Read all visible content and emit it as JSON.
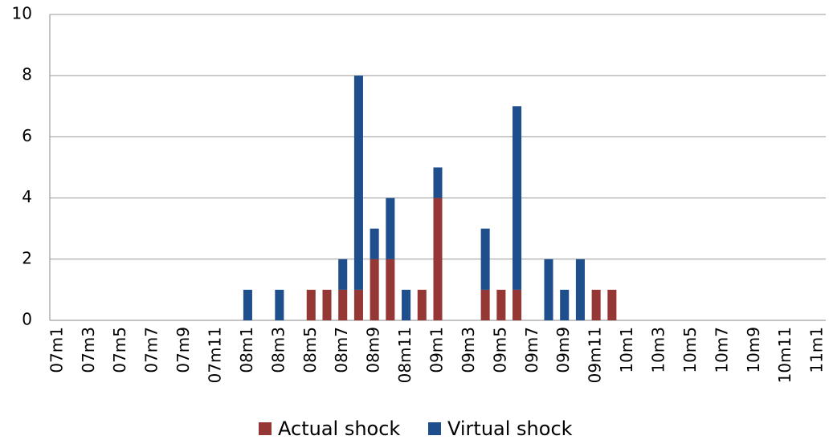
{
  "chart_data": {
    "type": "bar",
    "stacked": true,
    "categories": [
      "07m1",
      null,
      "07m3",
      null,
      "07m5",
      null,
      "07m7",
      null,
      "07m9",
      null,
      "07m11",
      null,
      "08m1",
      null,
      "08m3",
      null,
      "08m5",
      null,
      "08m7",
      null,
      "08m9",
      null,
      "08m11",
      null,
      "09m1",
      null,
      "09m3",
      null,
      "09m5",
      null,
      "09m7",
      null,
      "09m9",
      null,
      "09m11",
      null,
      "10m1",
      null,
      "10m3",
      null,
      "10m5",
      null,
      "10m7",
      null,
      "10m9",
      null,
      "10m11",
      null,
      "11m1"
    ],
    "series": [
      {
        "name": "Actual shock",
        "color": "#953735",
        "values": [
          0,
          0,
          0,
          0,
          0,
          0,
          0,
          0,
          0,
          0,
          0,
          0,
          0,
          0,
          0,
          0,
          1,
          1,
          1,
          1,
          2,
          2,
          0,
          1,
          4,
          0,
          0,
          1,
          1,
          1,
          0,
          0,
          0,
          0,
          1,
          1,
          0,
          0,
          0,
          0,
          0,
          0,
          0,
          0,
          0,
          0,
          0,
          0,
          0
        ]
      },
      {
        "name": "Virtual shock",
        "color": "#1f4e8c",
        "values": [
          0,
          0,
          0,
          0,
          0,
          0,
          0,
          0,
          0,
          0,
          0,
          0,
          1,
          0,
          1,
          0,
          0,
          0,
          1,
          7,
          1,
          2,
          1,
          0,
          1,
          0,
          0,
          2,
          0,
          6,
          0,
          2,
          1,
          2,
          0,
          0,
          0,
          0,
          0,
          0,
          0,
          0,
          0,
          0,
          0,
          0,
          0,
          0,
          0
        ]
      }
    ],
    "ylim": [
      0,
      10
    ],
    "yticks": [
      0,
      2,
      4,
      6,
      8,
      10
    ],
    "grid": true,
    "legend": "bottom"
  }
}
